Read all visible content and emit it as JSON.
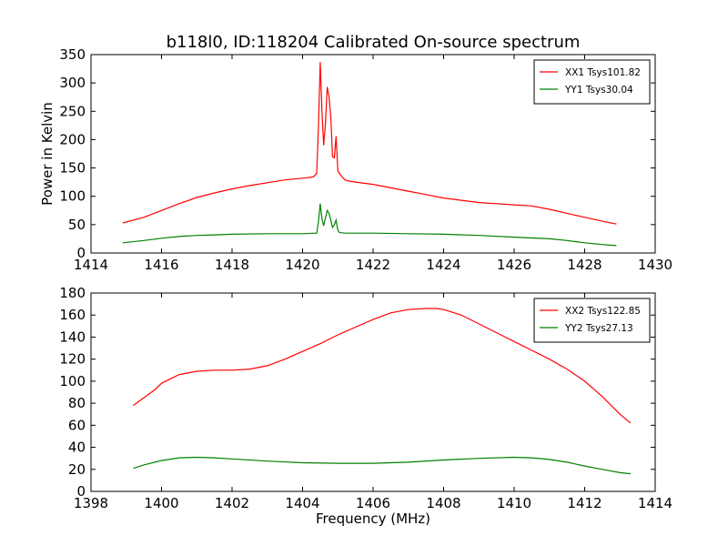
{
  "figure": {
    "title": "b118l0, ID:118204 Calibrated On-source spectrum"
  },
  "chart_data": [
    {
      "type": "line",
      "title": "b118l0, ID:118204 Calibrated On-source spectrum",
      "xlabel": "",
      "ylabel": "Power in Kelvin",
      "xlim": [
        1414,
        1430
      ],
      "ylim": [
        0,
        350
      ],
      "xticks": [
        1414,
        1416,
        1418,
        1420,
        1422,
        1424,
        1426,
        1428,
        1430
      ],
      "yticks": [
        0,
        50,
        100,
        150,
        200,
        250,
        300,
        350
      ],
      "grid": false,
      "legend": "top-right",
      "series": [
        {
          "name": "XX1 Tsys101.82",
          "color": "#ff0000",
          "x": [
            1414.9,
            1415.5,
            1416.0,
            1416.5,
            1417.0,
            1417.5,
            1418.0,
            1418.5,
            1419.0,
            1419.5,
            1420.0,
            1420.3,
            1420.4,
            1420.45,
            1420.5,
            1420.55,
            1420.6,
            1420.65,
            1420.7,
            1420.75,
            1420.8,
            1420.85,
            1420.9,
            1420.95,
            1421.0,
            1421.05,
            1421.1,
            1421.2,
            1421.3,
            1421.5,
            1422.0,
            1422.5,
            1423.0,
            1423.5,
            1424.0,
            1424.5,
            1425.0,
            1425.5,
            1426.0,
            1426.5,
            1427.0,
            1427.5,
            1428.0,
            1428.5,
            1428.9
          ],
          "y": [
            53,
            63,
            75,
            87,
            98,
            106,
            113,
            119,
            124,
            129,
            132,
            134,
            140,
            220,
            337,
            250,
            190,
            230,
            293,
            275,
            240,
            170,
            168,
            206,
            145,
            140,
            136,
            129,
            127,
            125,
            121,
            115,
            109,
            103,
            97,
            93,
            89,
            87,
            85,
            83,
            77,
            70,
            63,
            56,
            51
          ]
        },
        {
          "name": "YY1 Tsys30.04",
          "color": "#008000",
          "x": [
            1414.9,
            1415.5,
            1416.0,
            1416.5,
            1417.0,
            1417.5,
            1418.0,
            1419.0,
            1420.0,
            1420.4,
            1420.45,
            1420.5,
            1420.55,
            1420.6,
            1420.65,
            1420.7,
            1420.75,
            1420.8,
            1420.85,
            1420.9,
            1420.95,
            1421.0,
            1421.05,
            1421.2,
            1422.0,
            1423.0,
            1424.0,
            1425.0,
            1426.0,
            1427.0,
            1427.5,
            1428.0,
            1428.5,
            1428.9
          ],
          "y": [
            18,
            22,
            26,
            29,
            31,
            32,
            33,
            34,
            34,
            35,
            55,
            87,
            60,
            48,
            62,
            75,
            70,
            58,
            45,
            50,
            58,
            40,
            36,
            35,
            35,
            34,
            33,
            31,
            28,
            25,
            22,
            18,
            15,
            13
          ]
        }
      ]
    },
    {
      "type": "line",
      "title": "",
      "xlabel": "Frequency (MHz)",
      "ylabel": "",
      "xlim": [
        1398,
        1414
      ],
      "ylim": [
        0,
        180
      ],
      "xticks": [
        1398,
        1400,
        1402,
        1404,
        1406,
        1408,
        1410,
        1412,
        1414
      ],
      "yticks": [
        0,
        20,
        40,
        60,
        80,
        100,
        120,
        140,
        160,
        180
      ],
      "grid": false,
      "legend": "top-right",
      "series": [
        {
          "name": "XX2 Tsys122.85",
          "color": "#ff0000",
          "x": [
            1399.2,
            1399.5,
            1399.8,
            1400.0,
            1400.5,
            1401.0,
            1401.5,
            1402.0,
            1402.5,
            1403.0,
            1403.5,
            1404.0,
            1404.5,
            1405.0,
            1405.5,
            1406.0,
            1406.5,
            1407.0,
            1407.5,
            1407.8,
            1408.0,
            1408.5,
            1409.0,
            1409.5,
            1410.0,
            1410.5,
            1411.0,
            1411.5,
            1412.0,
            1412.5,
            1413.0,
            1413.3
          ],
          "y": [
            78,
            85,
            92,
            98,
            106,
            109,
            110,
            110,
            111,
            114,
            120,
            127,
            134,
            142,
            149,
            156,
            162,
            165,
            166,
            166,
            165,
            160,
            152,
            144,
            136,
            128,
            120,
            111,
            100,
            86,
            70,
            62
          ]
        },
        {
          "name": "YY2 Tsys27.13",
          "color": "#008000",
          "x": [
            1399.2,
            1399.5,
            1400.0,
            1400.5,
            1401.0,
            1401.5,
            1402.0,
            1403.0,
            1404.0,
            1405.0,
            1406.0,
            1407.0,
            1408.0,
            1409.0,
            1410.0,
            1410.5,
            1411.0,
            1411.5,
            1412.0,
            1412.5,
            1413.0,
            1413.3
          ],
          "y": [
            21,
            24,
            28,
            30.5,
            31,
            30.5,
            29.5,
            27.5,
            26,
            25.5,
            25.5,
            26.5,
            28.5,
            30,
            31,
            30.5,
            29,
            26.5,
            23,
            20,
            17,
            16
          ]
        }
      ]
    }
  ]
}
